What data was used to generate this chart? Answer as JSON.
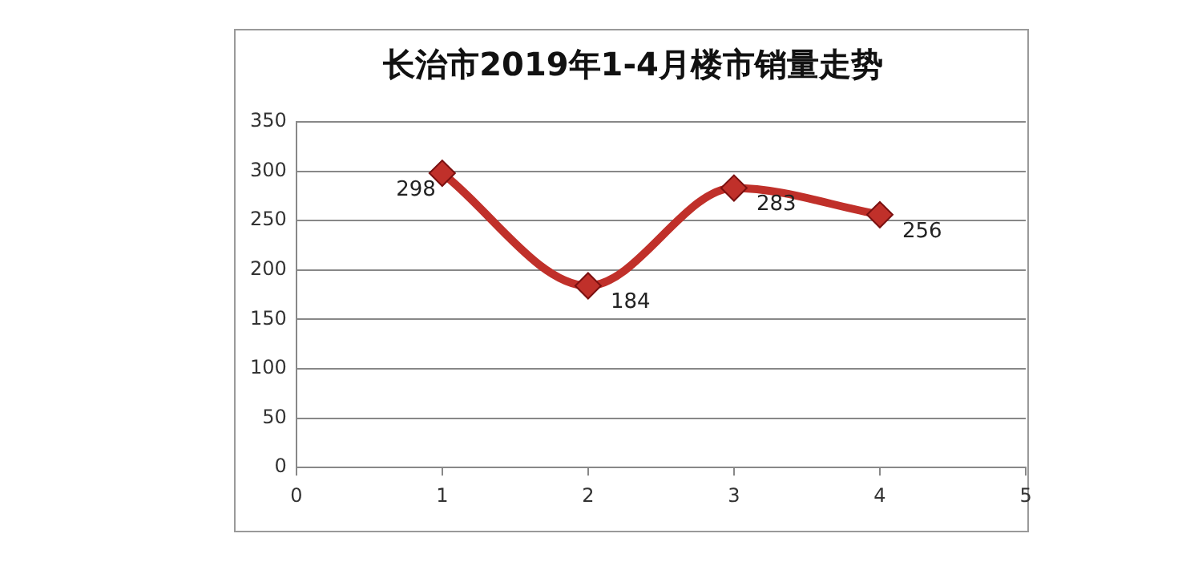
{
  "chart_data": {
    "type": "line",
    "title": "长治市2019年1-4月楼市销量走势",
    "x": [
      1,
      2,
      3,
      4
    ],
    "series": [
      {
        "color": "#c0302a",
        "values": [
          298,
          184,
          283,
          256
        ]
      }
    ],
    "xlim": [
      0,
      5
    ],
    "xticks": [
      0,
      1,
      2,
      3,
      4,
      5
    ],
    "ylim": [
      0,
      350
    ],
    "yticks": [
      0,
      50,
      100,
      150,
      200,
      250,
      300,
      350
    ],
    "grid": "y",
    "legend": false,
    "marker": "diamond",
    "line_style": "solid",
    "data_labels": true
  }
}
